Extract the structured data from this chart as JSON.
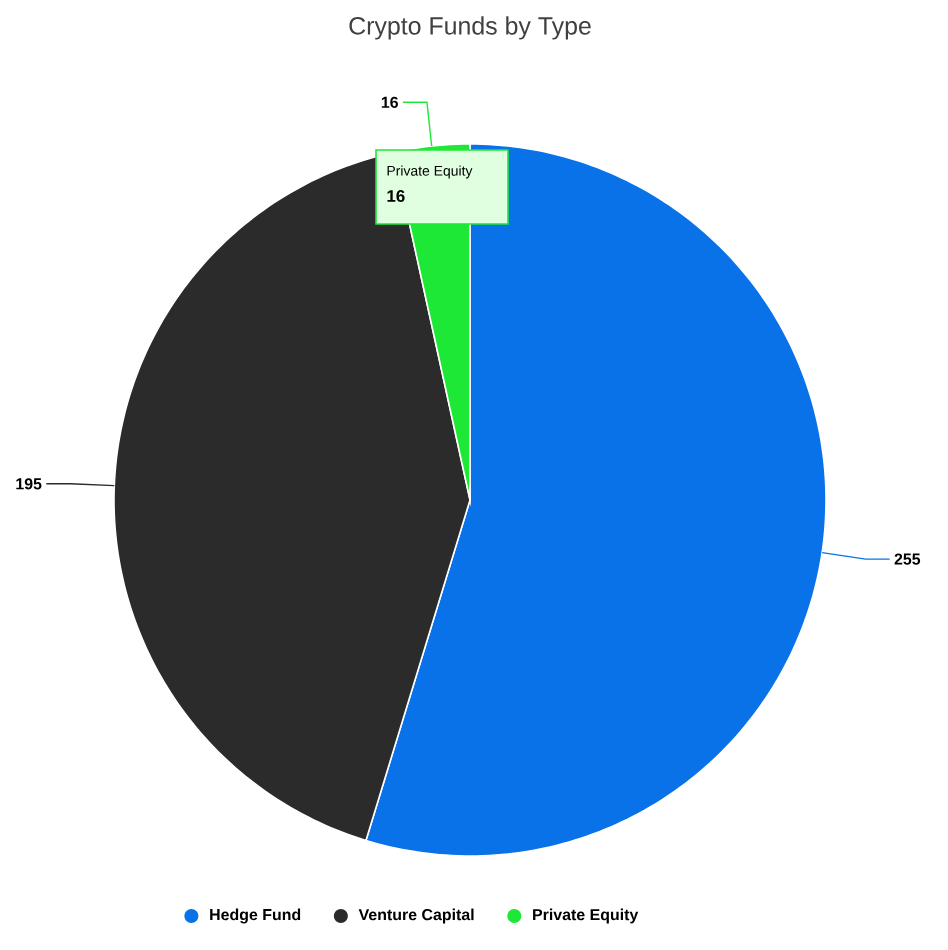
{
  "chart_data": {
    "type": "pie",
    "title": "Crypto Funds by Type",
    "categories": [
      "Hedge Fund",
      "Venture Capital",
      "Private Equity"
    ],
    "values": [
      255,
      195,
      16
    ],
    "colors": [
      "#0a72e8",
      "#2b2b2b",
      "#1ee836"
    ],
    "data_labels": true,
    "legend": "bottom",
    "annotations": [
      "Private Equity",
      "16"
    ]
  }
}
